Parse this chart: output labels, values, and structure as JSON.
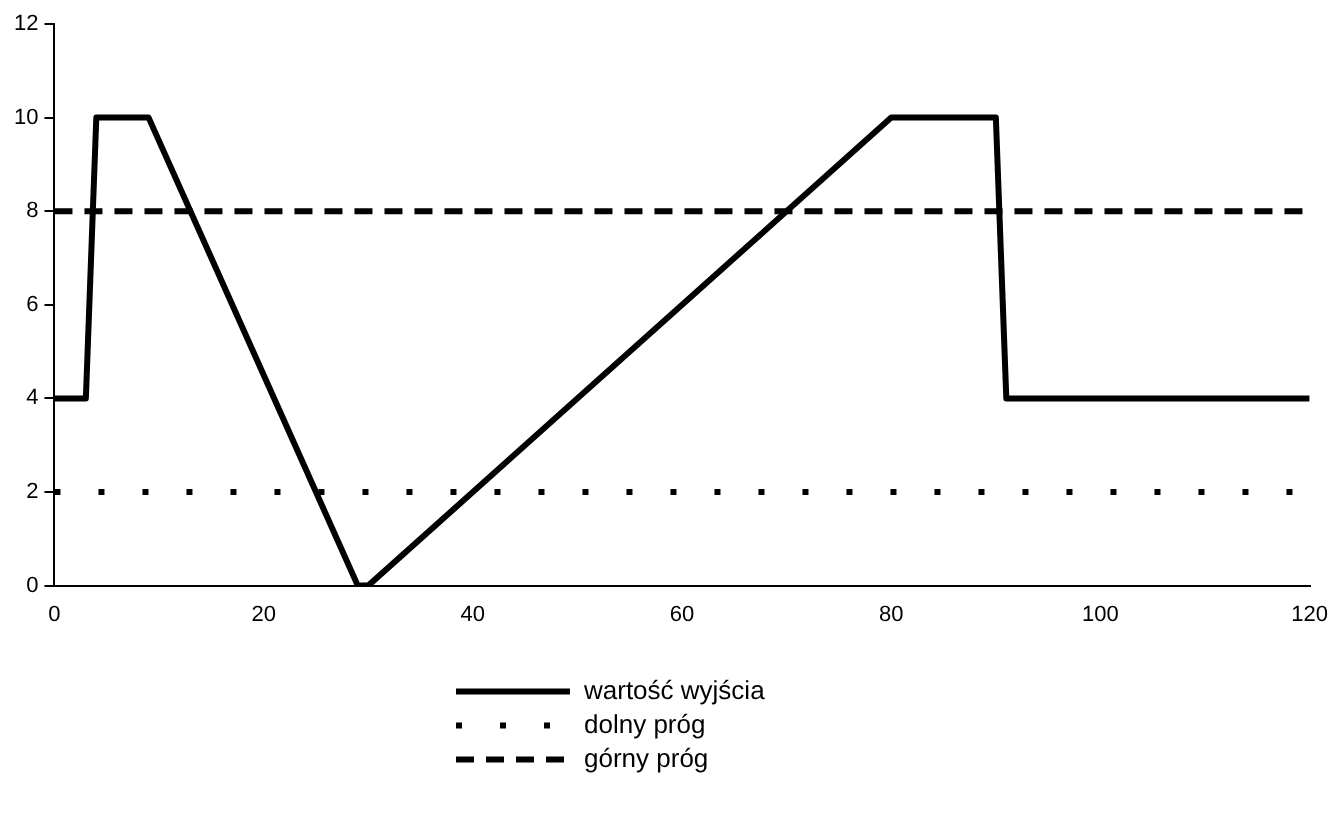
{
  "chart_data": {
    "type": "line",
    "xlim": [
      0,
      120
    ],
    "ylim": [
      0,
      12
    ],
    "xticks": [
      0,
      20,
      40,
      60,
      80,
      100,
      120
    ],
    "yticks": [
      0,
      2,
      4,
      6,
      8,
      10,
      12
    ],
    "grid": false,
    "legend": "bottom",
    "marker": "none",
    "series": [
      {
        "name": "wartość wyjścia",
        "color": "#000000",
        "line_style": "solid",
        "x": [
          0,
          3,
          4,
          9,
          29,
          30,
          80,
          90,
          91,
          120
        ],
        "values": [
          4,
          4,
          10,
          10,
          0,
          0,
          10,
          10,
          4,
          4
        ]
      },
      {
        "name": "dolny próg",
        "color": "#000000",
        "line_style": "dotted",
        "x": [
          0,
          120
        ],
        "values": [
          2,
          2
        ]
      },
      {
        "name": "górny próg",
        "color": "#000000",
        "line_style": "dashed",
        "x": [
          0,
          120
        ],
        "values": [
          8,
          8
        ]
      }
    ]
  }
}
